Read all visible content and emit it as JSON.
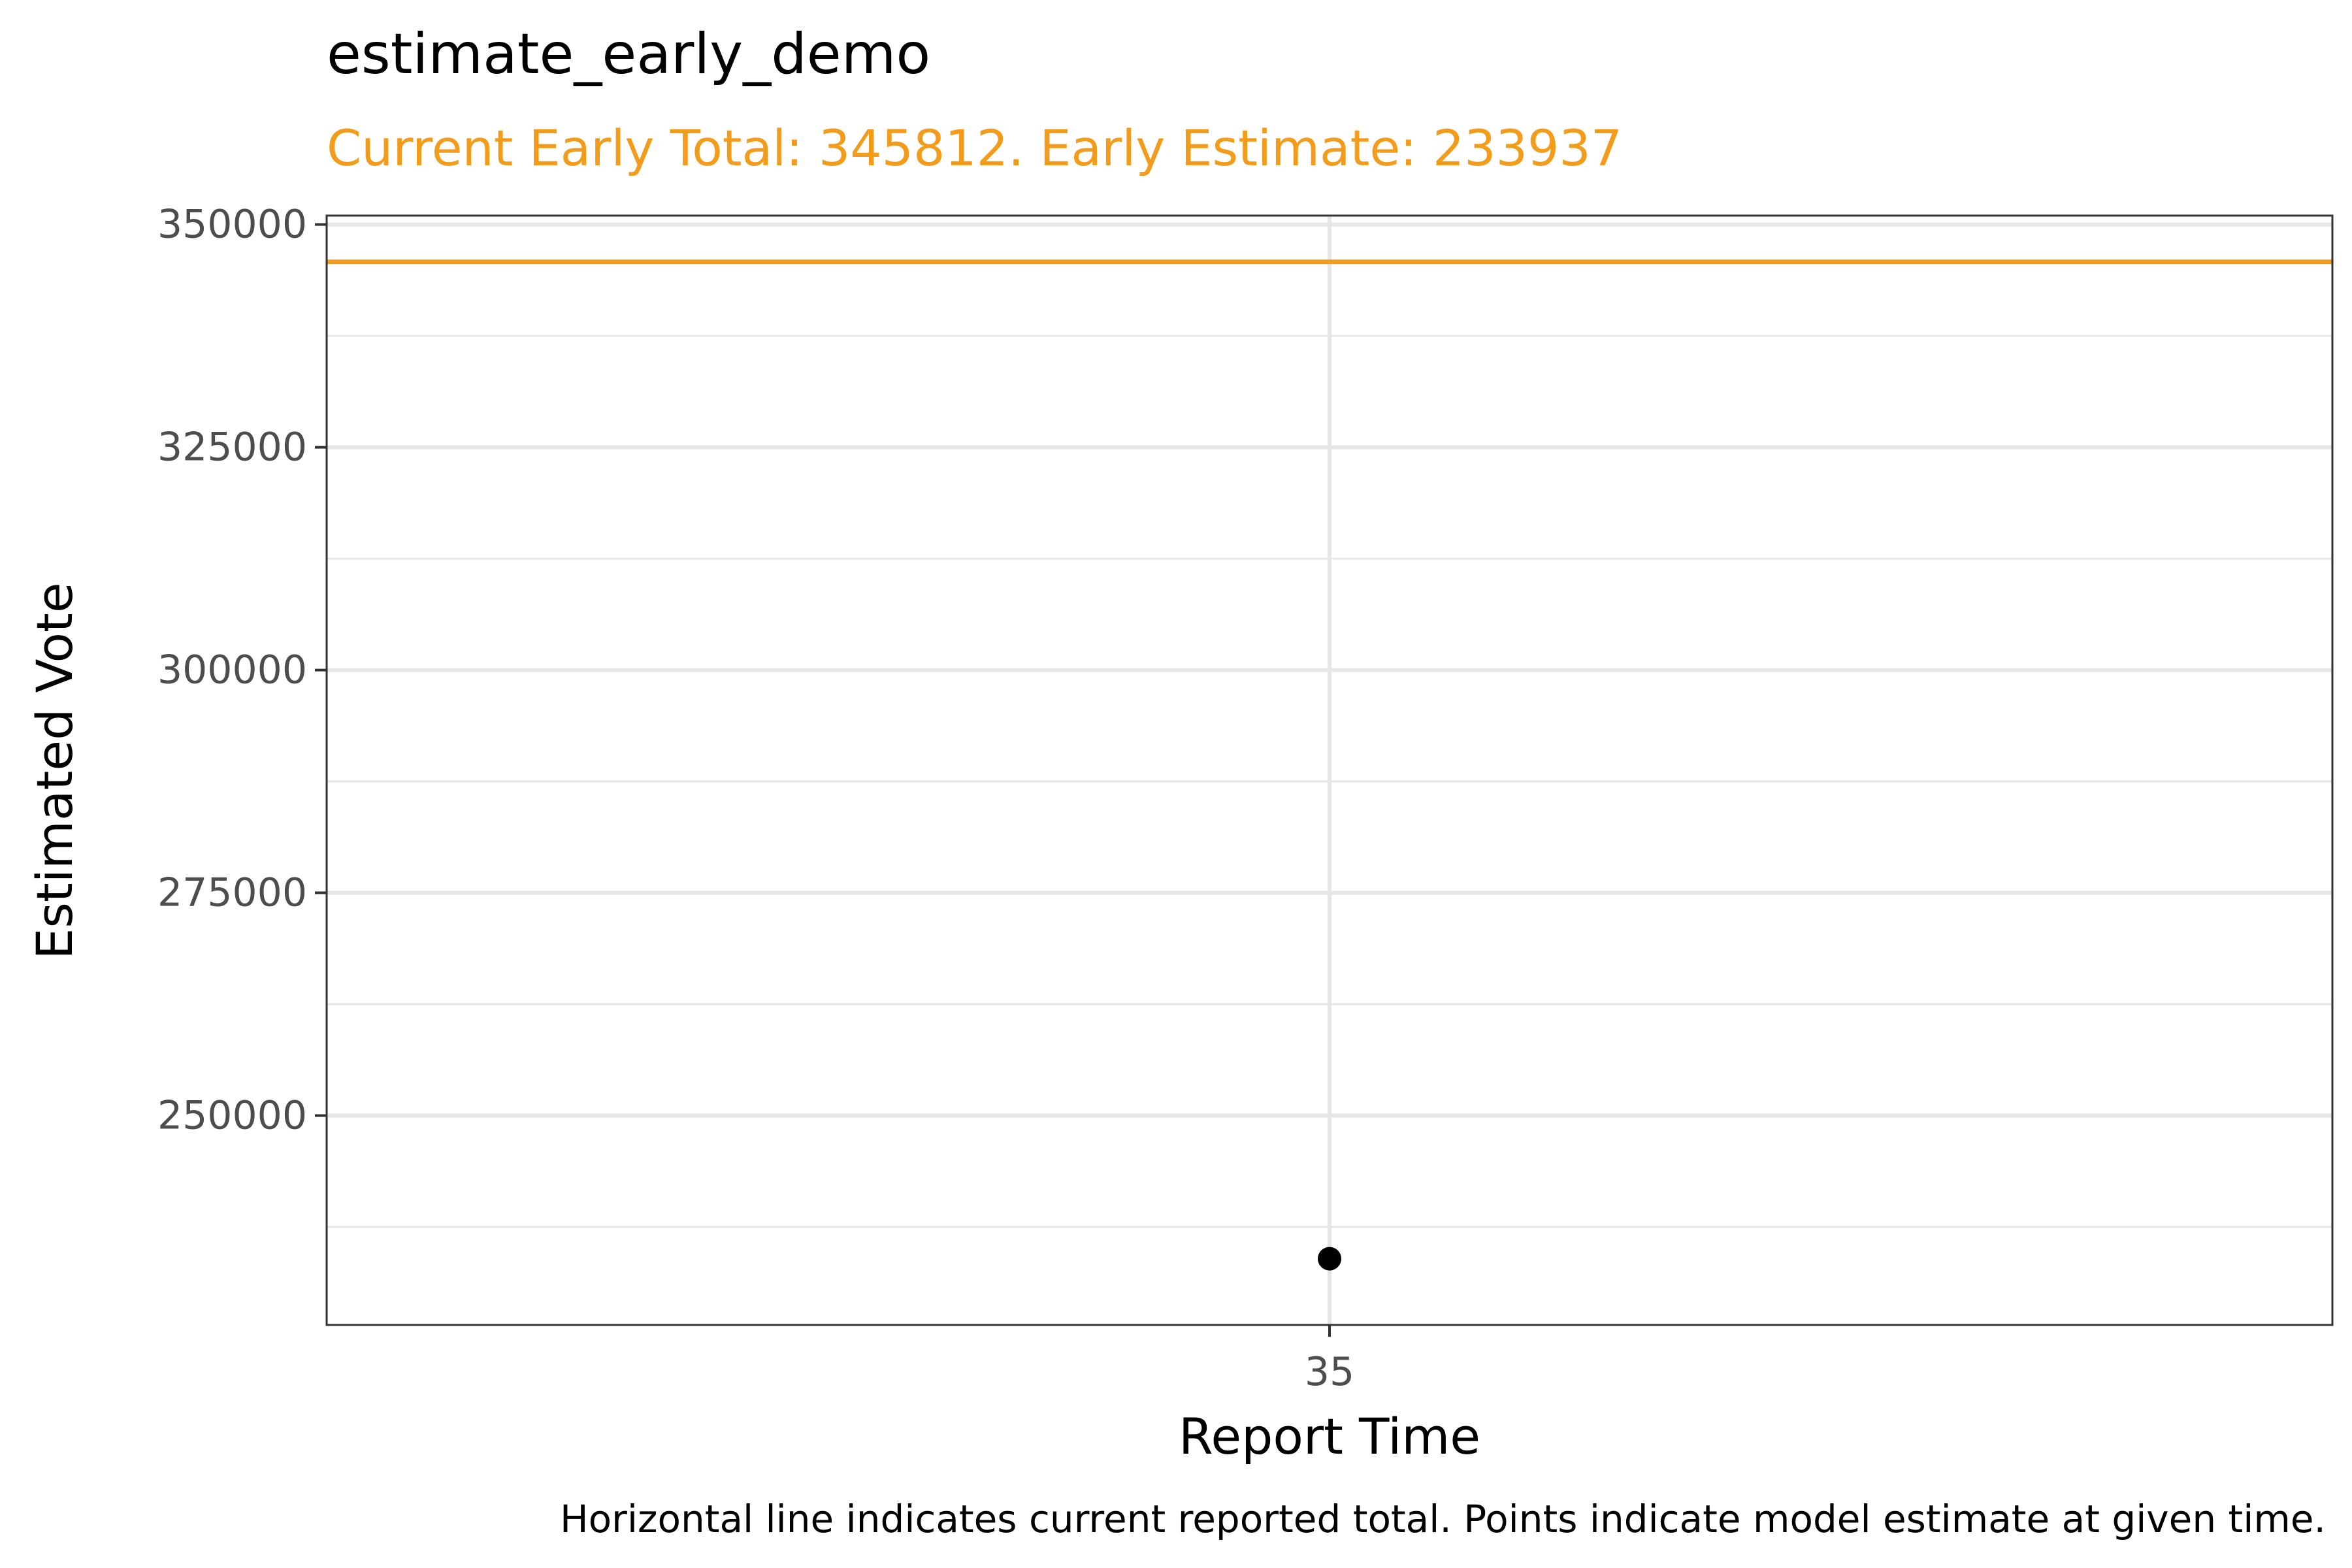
{
  "chart_data": {
    "type": "scatter",
    "title": "estimate_early_demo",
    "subtitle": "Current Early Total: 345812. Early Estimate: 233937",
    "caption": "Horizontal line indicates current reported total. Points indicate model estimate at given time.",
    "xlabel": "Report Time",
    "ylabel": "Estimated Vote",
    "x_ticks": [
      "35"
    ],
    "y_ticks": [
      250000,
      275000,
      300000,
      325000,
      350000
    ],
    "ylim": [
      226500,
      351000
    ],
    "grid": true,
    "points": [
      {
        "x": "35",
        "y": 233937
      }
    ],
    "hline": {
      "y": 345812,
      "color": "#F39C1B"
    },
    "colors": {
      "accent": "#F39C1B",
      "point": "#000000",
      "grid": "#E6E6E6"
    }
  }
}
